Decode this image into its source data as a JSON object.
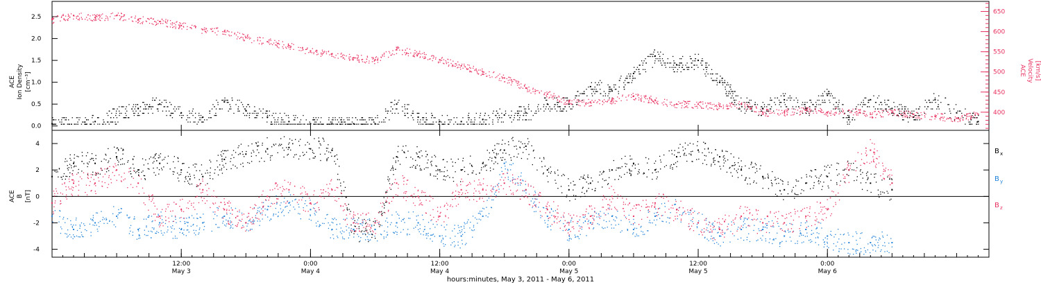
{
  "colors": {
    "black": "#000000",
    "pink": "#e8305f",
    "blue": "#1f82d8"
  },
  "chart_data": [
    {
      "type": "scatter",
      "panel": "top",
      "ylabel_left": [
        "ACE",
        "Ion Density",
        "[cm⁻³]"
      ],
      "ylabel_right": [
        "ACE",
        "Velocity",
        "[km/s]"
      ],
      "y_left_ticks": [
        "0.0",
        "0.5",
        "1.0",
        "1.5",
        "2.0",
        "2.5"
      ],
      "y_left_lim": [
        -0.1,
        2.85
      ],
      "y_right_ticks": [
        "400",
        "450",
        "500",
        "550",
        "600",
        "650"
      ],
      "y_right_lim": [
        355,
        675
      ],
      "x_range_hours": [
        0,
        87
      ],
      "series": [
        {
          "name": "Ion Density",
          "axis": "left",
          "color": "#000000",
          "x": [
            0,
            4,
            8,
            10,
            12,
            14,
            16,
            18,
            20,
            22,
            24,
            26,
            28,
            30,
            32,
            34,
            36,
            38,
            40,
            42,
            44,
            46,
            48,
            50,
            52,
            54,
            56,
            58,
            60,
            62,
            64,
            66,
            68,
            70,
            72,
            74,
            76,
            78,
            80,
            82,
            84,
            86
          ],
          "values": [
            0.05,
            0.1,
            0.4,
            0.5,
            0.3,
            0.2,
            0.55,
            0.35,
            0.2,
            0.1,
            0.05,
            0.05,
            0.05,
            0.05,
            0.5,
            0.2,
            0.1,
            0.1,
            0.15,
            0.25,
            0.3,
            0.5,
            0.5,
            0.9,
            0.8,
            1.2,
            1.6,
            1.4,
            1.5,
            1.0,
            0.5,
            0.4,
            0.6,
            0.4,
            0.7,
            0.2,
            0.6,
            0.4,
            0.2,
            0.6,
            0.3,
            0.1
          ]
        },
        {
          "name": "Velocity",
          "axis": "right",
          "color": "#e8305f",
          "x": [
            0,
            2,
            4,
            6,
            8,
            10,
            12,
            14,
            16,
            18,
            20,
            22,
            24,
            26,
            28,
            30,
            32,
            34,
            36,
            38,
            40,
            42,
            44,
            46,
            48,
            50,
            52,
            54,
            56,
            58,
            60,
            62,
            64,
            66,
            68,
            70,
            72,
            74,
            76,
            78,
            80,
            82,
            84,
            86
          ],
          "values": [
            630,
            640,
            635,
            640,
            630,
            625,
            615,
            605,
            600,
            585,
            575,
            565,
            552,
            545,
            535,
            530,
            555,
            545,
            530,
            515,
            500,
            485,
            460,
            445,
            425,
            425,
            430,
            440,
            430,
            420,
            420,
            415,
            420,
            400,
            400,
            405,
            400,
            405,
            395,
            400,
            395,
            390,
            385,
            395
          ]
        }
      ]
    },
    {
      "type": "scatter",
      "panel": "bottom",
      "ylabel_left": [
        "ACE",
        "B",
        "[nT]"
      ],
      "y_ticks": [
        "-4",
        "-2",
        "0",
        "2",
        "4"
      ],
      "y_lim": [
        -4.6,
        5.0
      ],
      "x_range_hours": [
        0,
        87
      ],
      "x_ticks": [
        {
          "hour": 12,
          "time": "12:00",
          "date": "May 3"
        },
        {
          "hour": 24,
          "time": "0:00",
          "date": "May 4"
        },
        {
          "hour": 36,
          "time": "12:00",
          "date": "May 4"
        },
        {
          "hour": 48,
          "time": "0:00",
          "date": "May 5"
        },
        {
          "hour": 60,
          "time": "12:00",
          "date": "May 5"
        },
        {
          "hour": 72,
          "time": "0:00",
          "date": "May 6"
        }
      ],
      "xlabel": "hours:minutes,  May  3, 2011 - May  6, 2011",
      "series": [
        {
          "name": "B",
          "sub": "x",
          "color": "#000000",
          "x": [
            0,
            2,
            4,
            6,
            8,
            10,
            12,
            14,
            16,
            18,
            20,
            22,
            24,
            26,
            28,
            30,
            32,
            34,
            36,
            38,
            40,
            42,
            44,
            46,
            48,
            50,
            52,
            54,
            56,
            58,
            60,
            62,
            64,
            66,
            68,
            70,
            72,
            74,
            76,
            78
          ],
          "values": [
            1.5,
            2.5,
            2.5,
            3.0,
            2.0,
            2.5,
            2.0,
            1.5,
            2.8,
            3.2,
            3.6,
            3.7,
            3.6,
            3.5,
            -2.5,
            -2.5,
            3.0,
            3.0,
            2.0,
            2.0,
            2.5,
            3.5,
            3.8,
            2.0,
            0.5,
            1.0,
            2.0,
            2.5,
            2.0,
            3.0,
            3.5,
            3.0,
            2.0,
            1.5,
            0.5,
            1.0,
            1.5,
            2.0,
            1.0,
            0.5
          ]
        },
        {
          "name": "B",
          "sub": "y",
          "color": "#1f82d8",
          "x": [
            0,
            2,
            4,
            6,
            8,
            10,
            12,
            14,
            16,
            18,
            20,
            22,
            24,
            26,
            28,
            30,
            32,
            34,
            36,
            38,
            40,
            42,
            44,
            46,
            48,
            50,
            52,
            54,
            56,
            58,
            60,
            62,
            64,
            66,
            68,
            70,
            72,
            74,
            76,
            78
          ],
          "values": [
            -1.5,
            -2.5,
            -2.0,
            -1.5,
            -2.5,
            -2.0,
            -2.5,
            -2.0,
            -1.5,
            -2.0,
            -1.0,
            -0.5,
            -1.0,
            -2.5,
            -2.5,
            -2.5,
            -2.0,
            -2.0,
            -3.0,
            -3.0,
            -1.5,
            2.5,
            0.5,
            -1.5,
            -2.5,
            -2.0,
            -1.5,
            -2.5,
            -1.5,
            -1.0,
            -2.0,
            -3.0,
            -2.5,
            -2.5,
            -3.0,
            -2.5,
            -3.0,
            -3.5,
            -3.5,
            -3.5
          ]
        },
        {
          "name": "B",
          "sub": "z",
          "color": "#e8305f",
          "x": [
            0,
            2,
            4,
            6,
            8,
            10,
            12,
            14,
            16,
            18,
            20,
            22,
            24,
            26,
            28,
            30,
            32,
            34,
            36,
            38,
            40,
            42,
            44,
            46,
            48,
            50,
            52,
            54,
            56,
            58,
            60,
            62,
            64,
            66,
            68,
            70,
            72,
            74,
            76,
            78
          ],
          "values": [
            -0.5,
            1.0,
            1.0,
            2.0,
            1.0,
            -1.5,
            -1.0,
            0.5,
            -1.0,
            -2.0,
            0.0,
            0.5,
            -0.5,
            0.5,
            -2.0,
            -2.0,
            1.0,
            0.0,
            -1.5,
            0.5,
            0.5,
            1.0,
            0.5,
            -1.0,
            -2.0,
            -1.5,
            0.0,
            -1.5,
            -0.5,
            -1.0,
            -2.0,
            -2.5,
            -1.5,
            -2.0,
            -2.0,
            -1.5,
            -1.0,
            2.0,
            3.5,
            1.0
          ]
        }
      ]
    }
  ]
}
